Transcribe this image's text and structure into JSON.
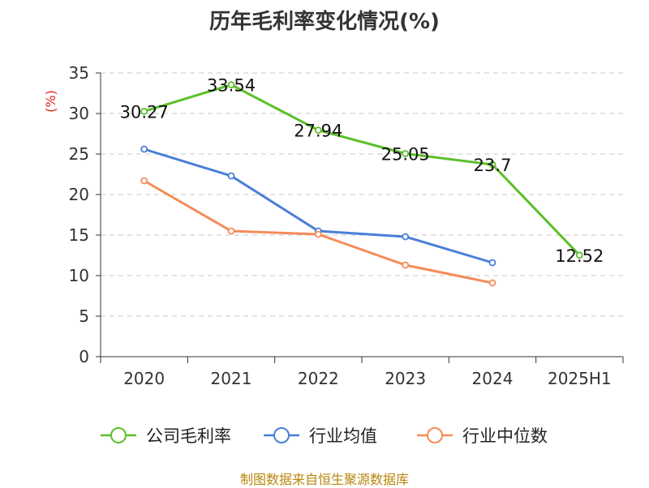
{
  "colors": {
    "axis": "#333333",
    "grid": "#c8c8c8",
    "ylabel": "#e0201b",
    "source": "#b8860b"
  },
  "chart_data": {
    "type": "line",
    "title": "历年毛利率变化情况(%)",
    "ylabel": "(%)",
    "xlabel": "",
    "categories": [
      "2020",
      "2021",
      "2022",
      "2023",
      "2024",
      "2025H1"
    ],
    "ylim": [
      0,
      35
    ],
    "yticks": [
      0,
      5,
      10,
      15,
      20,
      25,
      30,
      35
    ],
    "grid": "horizontal-dashed",
    "legend_position": "bottom",
    "series": [
      {
        "name": "公司毛利率",
        "color": "#5cbf2a",
        "values": [
          30.27,
          33.54,
          27.94,
          25.05,
          23.7,
          12.52
        ],
        "data_labels": [
          "30.27",
          "33.54",
          "27.94",
          "25.05",
          "23.7",
          "12.52"
        ]
      },
      {
        "name": "行业均值",
        "color": "#4a7fd8",
        "values": [
          25.6,
          22.3,
          15.5,
          14.8,
          11.6,
          null
        ]
      },
      {
        "name": "行业中位数",
        "color": "#f58b58",
        "values": [
          21.7,
          15.5,
          15.1,
          11.3,
          9.1,
          null
        ]
      }
    ]
  },
  "source_note": "制图数据来自恒生聚源数据库"
}
